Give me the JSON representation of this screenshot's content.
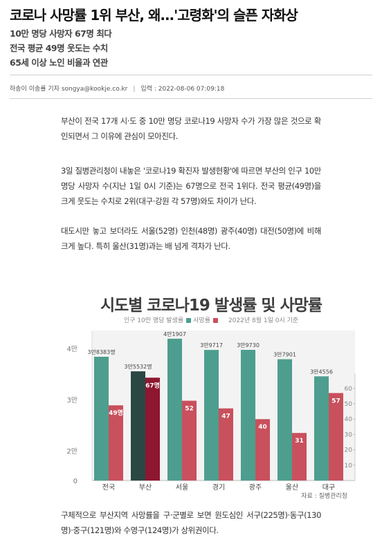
{
  "article": {
    "headline": "코로나 사망률 1위 부산, 왜...'고령화'의 슬픈 자화상",
    "subheads": [
      "10만 명당 사망자 67명 최다",
      "전국 평균 49명 웃도는 수치",
      "65세 이상 노인 비율과 연관"
    ],
    "byline": {
      "author": "하송이 이송률 기자 songya@kookje.co.kr",
      "date": "입력 : 2022-08-06 07:09:18"
    },
    "paragraphs": [
      "부산이 전국 17개 시·도 중 10만 명당 코로나19 사망자 수가 가장 많은 것으로 확인되면서 그 이유에 관심이 모아진다.",
      "3일 질병관리청이 내놓은 '코로나19 확진자 발생현황'에 따르면 부산의 인구 10만명당 사망자 수(지난 1일 0시 기준)는 67명으로 전국 1위다. 전국 평균(49명)을 크게 웃도는 수치로 2위(대구·강원 각 57명)와도 차이가 난다.",
      "대도시만 놓고 보더라도 서울(52명) 인천(48명) 광주(40명) 대전(50명)에 비해 크게 높다. 특히 울산(31명)과는 배 넘게 격차가 난다.",
      "구체적으로 부산지역 사망률을 구·군별로 보면 원도심인 서구(225명)·동구(130명)·중구(121명)와 수영구(124명)가 상위권이다."
    ]
  },
  "chart": {
    "colors": {
      "incidence": "#4d9e8e",
      "death": "#c9505d",
      "busan_incidence": "#2a4843",
      "busan_death": "#8e1630"
    },
    "legend": {
      "incidence": "인구 10만 명당 발생률",
      "death": "사망률",
      "date": "2022년 8월 1일 0시 기준"
    },
    "source": "자료 : 질병관리청"
  },
  "chart_data": {
    "type": "bar",
    "title": "시도별 코로나19 발생률 및 사망률",
    "categories": [
      "전국",
      "부산",
      "서울",
      "경기",
      "광주",
      "울산",
      "대구"
    ],
    "series": [
      {
        "name": "인구 10만 명당 발생률",
        "axis": "left",
        "values": [
          38383,
          35532,
          41907,
          39717,
          39730,
          37901,
          34556
        ],
        "labels": [
          "3만8383명",
          "3만5532명",
          "4만1907",
          "3만9717",
          "3만9730",
          "3만7901",
          "3만4556"
        ]
      },
      {
        "name": "사망률",
        "axis": "right",
        "values": [
          49,
          67,
          52,
          47,
          40,
          31,
          57
        ],
        "labels": [
          "49명",
          "67명",
          "52",
          "47",
          "40",
          "31",
          "57"
        ]
      }
    ],
    "left_axis": {
      "ticks": [
        "0",
        "2만",
        "3만",
        "4만"
      ]
    },
    "right_axis": {
      "ylim": [
        0,
        70
      ],
      "ticks": [
        "10",
        "20",
        "30",
        "40",
        "50",
        "60"
      ]
    },
    "highlight_category": "부산",
    "grid": false
  }
}
